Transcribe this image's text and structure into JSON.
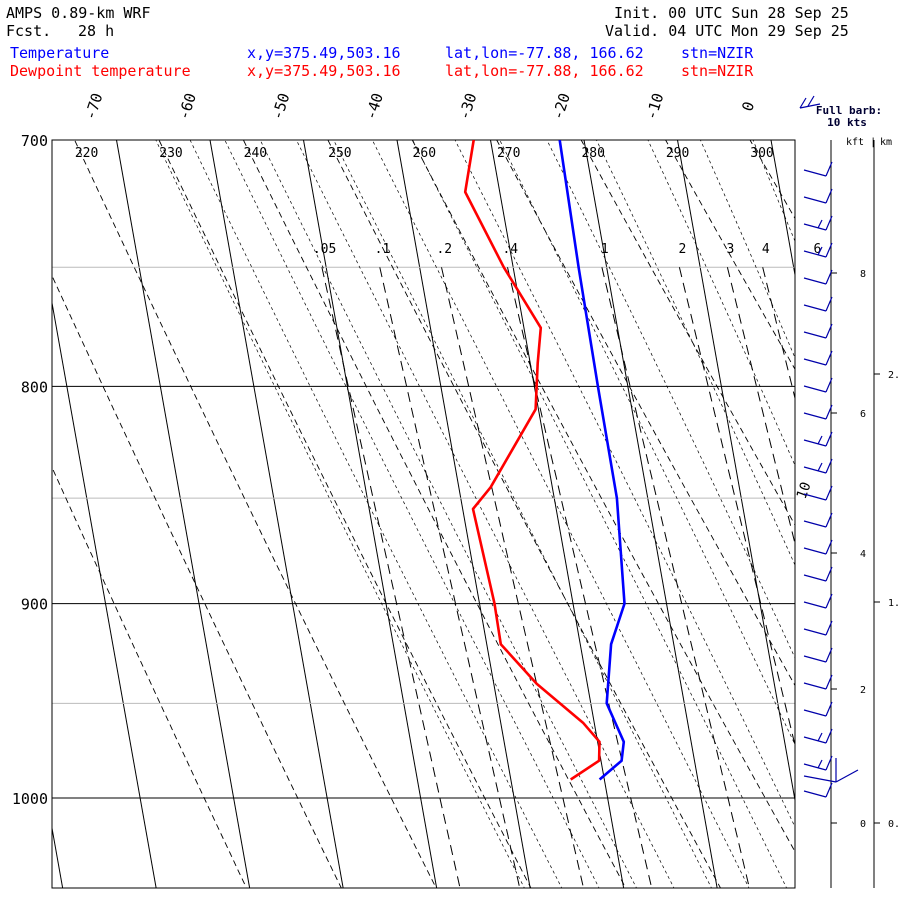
{
  "header": {
    "model": "AMPS 0.89-km WRF",
    "fcst_label": "Fcst.",
    "fcst_value": "28 h",
    "init": "Init. 00 UTC Sun 28 Sep 25",
    "valid": "Valid. 04 UTC Mon 29 Sep 25",
    "temp_label": "Temperature",
    "dew_label": "Dewpoint temperature",
    "xy": "x,y=375.49,503.16",
    "latlon": "lat,lon=-77.88, 166.62",
    "stn": "stn=NZIR"
  },
  "colors": {
    "temperature": "#0000ff",
    "dewpoint": "#ff0000",
    "barb": "#0000aa",
    "grid": "#000000",
    "minor_grid": "#bbbbbb"
  },
  "barb_legend": {
    "title": "Full barb:",
    "value": "10 kts"
  },
  "axis": {
    "kft_label": "kft",
    "km_label": "km",
    "kft_ticks": [
      "8",
      "6",
      "4",
      "2",
      "0"
    ],
    "km_ticks": [
      "2.",
      "1.",
      "0."
    ]
  },
  "chart_data": {
    "type": "line",
    "title": "",
    "pressure_levels": [
      700,
      800,
      900,
      1000
    ],
    "pressure_tick_labels": [
      "700",
      "800",
      "900",
      "1000"
    ],
    "temperature_tick_labels": [
      "-70",
      "-60",
      "-50",
      "-40",
      "-30",
      "-20",
      "-10",
      "0"
    ],
    "theta_tick_labels": [
      "220",
      "230",
      "240",
      "250",
      "260",
      "270",
      "280",
      "290",
      "300"
    ],
    "mixing_ratio_tick_labels": [
      ".05",
      ".1",
      ".2",
      ".4",
      "1",
      "2",
      "3",
      "4",
      "6"
    ],
    "moist_adiabat_label": "10",
    "series": [
      {
        "name": "Temperature",
        "pressure": [
          700,
          750,
          800,
          850,
          900,
          920,
          950,
          970,
          980,
          990
        ],
        "temperature": [
          -22.6,
          -23.0,
          -23.2,
          -23.3,
          -24.5,
          -26.7,
          -28.3,
          -27.2,
          -27.8,
          -30.5
        ]
      },
      {
        "name": "Dewpoint temperature",
        "pressure": [
          700,
          720,
          750,
          775,
          790,
          810,
          845,
          855,
          900,
          920,
          940,
          960,
          970,
          980,
          990
        ],
        "temperature": [
          -31.8,
          -33.7,
          -31.0,
          -28.2,
          -29.2,
          -30.3,
          -36.6,
          -38.9,
          -38.4,
          -38.5,
          -35.4,
          -31.2,
          -29.8,
          -30.2,
          -33.6
        ]
      }
    ],
    "wind_barbs_kts": [
      10,
      10,
      15,
      15,
      10,
      10,
      10,
      10,
      10,
      10,
      15,
      15,
      10,
      10,
      10,
      10,
      10,
      10,
      10,
      10,
      10,
      15,
      15,
      10
    ]
  }
}
